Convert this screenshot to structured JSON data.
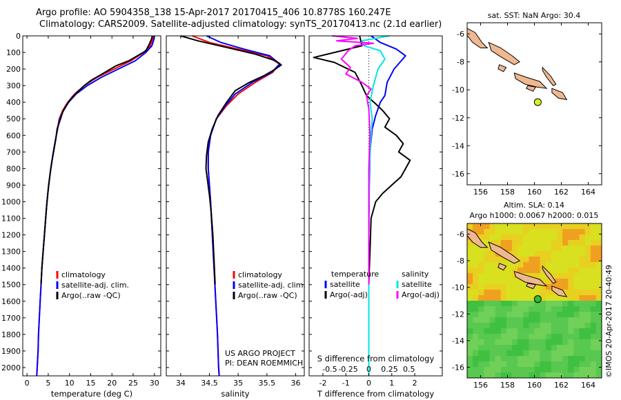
{
  "header": {
    "title_line1": "Argo profile: AO 5904358_138 15-Apr-2017 20170415_406 10.8778S 160.247E",
    "title_line2": "Climatology: CARS2009. Satellite-adjusted climatology: synTS_20170413.nc (2.1d earlier)"
  },
  "credits": {
    "project": "US ARGO PROJECT",
    "pi": "PI: DEAN ROEMMICH",
    "imos": "©IMOS 20-Apr-2017 20-40:49"
  },
  "colors": {
    "climatology": "#ff0000",
    "satellite": "#0000ff",
    "argo": "#000000",
    "satellite_salinity": "#00e5e5",
    "argo_salinity_adj": "#ff00ff",
    "land": "#f0b890",
    "float_marker": "#d8f020",
    "float_marker_lower": "#30c030"
  },
  "depth_axis": {
    "ylim": [
      0,
      2050
    ],
    "ticks": [
      0,
      100,
      200,
      300,
      400,
      500,
      600,
      700,
      800,
      900,
      1000,
      1100,
      1200,
      1300,
      1400,
      1500,
      1600,
      1700,
      1800,
      1900,
      2000
    ]
  },
  "chart_data": [
    {
      "type": "line",
      "id": "temperature",
      "xlabel": "temperature (deg C)",
      "xlim": [
        -1,
        31.5
      ],
      "xticks": [
        0,
        5,
        10,
        15,
        20,
        25,
        30
      ],
      "legend": [
        "climatology",
        "satellite-adj. clim.",
        "Argo(..raw -QC)"
      ],
      "legend_placement": "lower-middle",
      "series": [
        {
          "name": "climatology",
          "color": "#ff0000",
          "points": [
            [
              29.8,
              0
            ],
            [
              29.6,
              20
            ],
            [
              29.0,
              60
            ],
            [
              27.5,
              100
            ],
            [
              24.5,
              150
            ],
            [
              20.5,
              200
            ],
            [
              16.5,
              250
            ],
            [
              13.5,
              300
            ],
            [
              11.2,
              350
            ],
            [
              9.6,
              400
            ],
            [
              8.4,
              450
            ],
            [
              7.6,
              500
            ],
            [
              6.9,
              600
            ],
            [
              6.2,
              700
            ],
            [
              5.6,
              800
            ],
            [
              5.1,
              900
            ],
            [
              4.7,
              1000
            ],
            [
              4.4,
              1100
            ],
            [
              4.1,
              1200
            ],
            [
              3.8,
              1300
            ],
            [
              3.5,
              1400
            ],
            [
              3.3,
              1500
            ],
            [
              3.1,
              1600
            ],
            [
              2.9,
              1700
            ],
            [
              2.7,
              1800
            ],
            [
              2.6,
              1900
            ],
            [
              2.4,
              2000
            ],
            [
              2.3,
              2050
            ]
          ]
        },
        {
          "name": "satellite-adj. clim.",
          "color": "#0000ff",
          "points": [
            [
              30.0,
              0
            ],
            [
              29.9,
              20
            ],
            [
              29.4,
              60
            ],
            [
              28.0,
              100
            ],
            [
              25.5,
              150
            ],
            [
              21.5,
              200
            ],
            [
              17.5,
              250
            ],
            [
              14.2,
              300
            ],
            [
              11.6,
              350
            ],
            [
              9.8,
              400
            ],
            [
              8.6,
              450
            ],
            [
              7.7,
              500
            ],
            [
              6.9,
              600
            ],
            [
              6.2,
              700
            ],
            [
              5.6,
              800
            ],
            [
              5.1,
              900
            ],
            [
              4.7,
              1000
            ],
            [
              4.4,
              1100
            ],
            [
              4.1,
              1200
            ],
            [
              3.8,
              1300
            ],
            [
              3.5,
              1400
            ],
            [
              3.3,
              1500
            ],
            [
              3.1,
              1600
            ],
            [
              2.9,
              1700
            ],
            [
              2.7,
              1800
            ],
            [
              2.6,
              1900
            ],
            [
              2.4,
              2000
            ],
            [
              2.3,
              2050
            ]
          ]
        },
        {
          "name": "Argo(..raw -QC)",
          "color": "#000000",
          "points": [
            [
              29.5,
              0
            ],
            [
              29.3,
              20
            ],
            [
              28.8,
              50
            ],
            [
              28.0,
              90
            ],
            [
              26.0,
              120
            ],
            [
              24.0,
              150
            ],
            [
              21.0,
              180
            ],
            [
              19.0,
              210
            ],
            [
              17.0,
              240
            ],
            [
              15.0,
              270
            ],
            [
              13.5,
              300
            ],
            [
              11.8,
              340
            ],
            [
              10.3,
              380
            ],
            [
              9.2,
              420
            ],
            [
              8.4,
              460
            ],
            [
              7.9,
              500
            ],
            [
              7.1,
              560
            ],
            [
              6.8,
              620
            ],
            [
              6.4,
              680
            ],
            [
              5.9,
              750
            ],
            [
              5.5,
              820
            ],
            [
              5.2,
              880
            ],
            [
              4.9,
              950
            ],
            [
              4.6,
              1030
            ],
            [
              4.4,
              1100
            ],
            [
              4.1,
              1200
            ],
            [
              3.8,
              1300
            ],
            [
              3.5,
              1400
            ],
            [
              3.3,
              1500
            ]
          ]
        }
      ]
    },
    {
      "type": "line",
      "id": "salinity",
      "xlabel": "salinity",
      "xlim": [
        33.75,
        36.15
      ],
      "xticks": [
        34,
        34.5,
        35,
        35.5,
        36
      ],
      "legend": [
        "climatology",
        "satellite-adj. clim.",
        "Argo(..raw -QC)"
      ],
      "legend_placement": "lower-middle",
      "series": [
        {
          "name": "climatology",
          "color": "#ff0000",
          "points": [
            [
              34.2,
              0
            ],
            [
              34.5,
              40
            ],
            [
              35.0,
              80
            ],
            [
              35.5,
              120
            ],
            [
              35.72,
              170
            ],
            [
              35.6,
              220
            ],
            [
              35.3,
              280
            ],
            [
              35.0,
              350
            ],
            [
              34.8,
              420
            ],
            [
              34.62,
              500
            ],
            [
              34.52,
              600
            ],
            [
              34.48,
              700
            ],
            [
              34.48,
              800
            ],
            [
              34.5,
              900
            ],
            [
              34.52,
              1000
            ],
            [
              34.55,
              1200
            ],
            [
              34.58,
              1400
            ],
            [
              34.61,
              1600
            ],
            [
              34.64,
              1800
            ],
            [
              34.66,
              2000
            ],
            [
              34.67,
              2050
            ]
          ]
        },
        {
          "name": "satellite-adj. clim.",
          "color": "#0000ff",
          "points": [
            [
              34.45,
              0
            ],
            [
              34.7,
              40
            ],
            [
              35.1,
              80
            ],
            [
              35.55,
              120
            ],
            [
              35.72,
              170
            ],
            [
              35.58,
              220
            ],
            [
              35.25,
              280
            ],
            [
              34.95,
              350
            ],
            [
              34.78,
              420
            ],
            [
              34.62,
              500
            ],
            [
              34.52,
              600
            ],
            [
              34.48,
              700
            ],
            [
              34.48,
              800
            ],
            [
              34.5,
              900
            ],
            [
              34.52,
              1000
            ],
            [
              34.55,
              1200
            ],
            [
              34.58,
              1400
            ],
            [
              34.61,
              1600
            ],
            [
              34.64,
              1800
            ],
            [
              34.66,
              2000
            ],
            [
              34.67,
              2050
            ]
          ]
        },
        {
          "name": "Argo(..raw -QC)",
          "color": "#000000",
          "points": [
            [
              34.0,
              0
            ],
            [
              34.3,
              30
            ],
            [
              34.8,
              70
            ],
            [
              35.3,
              110
            ],
            [
              35.65,
              150
            ],
            [
              35.75,
              175
            ],
            [
              35.65,
              200
            ],
            [
              35.45,
              240
            ],
            [
              35.2,
              280
            ],
            [
              34.95,
              330
            ],
            [
              34.8,
              400
            ],
            [
              34.65,
              480
            ],
            [
              34.55,
              560
            ],
            [
              34.48,
              640
            ],
            [
              34.45,
              720
            ],
            [
              34.44,
              800
            ],
            [
              34.47,
              880
            ],
            [
              34.5,
              960
            ],
            [
              34.53,
              1060
            ],
            [
              34.56,
              1200
            ],
            [
              34.58,
              1350
            ],
            [
              34.6,
              1500
            ]
          ]
        }
      ]
    },
    {
      "type": "line",
      "id": "difference",
      "xlabel": "T difference from climatology",
      "xlabel_top": "S difference from climatology",
      "xlim": [
        -2.6,
        3.2
      ],
      "xticks_T": [
        -2,
        -1,
        0,
        1,
        2
      ],
      "xticks_S": [
        "-0.5",
        "-0.25",
        "0",
        "0.25",
        "0.5"
      ],
      "xticks_S_pos": [
        -1.7,
        -0.9,
        0,
        0.9,
        1.75
      ],
      "legend_temperature_title": "temperature",
      "legend_salinity_title": "salinity",
      "legend_temperature": [
        "satellite",
        "Argo(-adj)"
      ],
      "legend_salinity": [
        "satellite",
        "Argo(-adj)"
      ],
      "series": [
        {
          "name": "temperature satellite",
          "color": "#0000ff",
          "points": [
            [
              0.1,
              0
            ],
            [
              0.5,
              40
            ],
            [
              1.2,
              80
            ],
            [
              1.6,
              120
            ],
            [
              1.1,
              200
            ],
            [
              0.8,
              280
            ],
            [
              0.7,
              360
            ],
            [
              0.5,
              400
            ],
            [
              0.3,
              480
            ],
            [
              0.15,
              560
            ],
            [
              0.05,
              700
            ],
            [
              0.02,
              900
            ],
            [
              0.0,
              1200
            ],
            [
              0.0,
              1600
            ],
            [
              0.0,
              2050
            ]
          ]
        },
        {
          "name": "temperature Argo(-adj)",
          "color": "#000000",
          "points": [
            [
              -0.4,
              0
            ],
            [
              -0.3,
              60
            ],
            [
              -1.8,
              110
            ],
            [
              -2.4,
              130
            ],
            [
              -1.5,
              160
            ],
            [
              -0.6,
              220
            ],
            [
              -0.3,
              300
            ],
            [
              -0.1,
              360
            ],
            [
              0.3,
              410
            ],
            [
              0.6,
              450
            ],
            [
              0.9,
              500
            ],
            [
              0.7,
              550
            ],
            [
              1.2,
              600
            ],
            [
              1.5,
              650
            ],
            [
              1.3,
              700
            ],
            [
              1.8,
              750
            ],
            [
              1.6,
              800
            ],
            [
              1.4,
              850
            ],
            [
              1.0,
              900
            ],
            [
              0.6,
              950
            ],
            [
              0.3,
              1000
            ],
            [
              0.1,
              1100
            ],
            [
              0.05,
              1300
            ],
            [
              0.0,
              1500
            ]
          ]
        },
        {
          "name": "salinity satellite",
          "color": "#00e5e5",
          "points": [
            [
              0.9,
              0
            ],
            [
              -0.3,
              30
            ],
            [
              -0.2,
              60
            ],
            [
              0.5,
              90
            ],
            [
              0.7,
              140
            ],
            [
              0.4,
              200
            ],
            [
              0.2,
              300
            ],
            [
              0.05,
              400
            ],
            [
              0.15,
              500
            ],
            [
              0.1,
              600
            ],
            [
              0.02,
              800
            ],
            [
              0.0,
              1200
            ],
            [
              0.0,
              1600
            ],
            [
              0.0,
              2050
            ]
          ]
        },
        {
          "name": "salinity Argo(-adj)",
          "color": "#ff00ff",
          "points": [
            [
              -1.6,
              0
            ],
            [
              -0.5,
              15
            ],
            [
              -1.4,
              30
            ],
            [
              0.2,
              45
            ],
            [
              -0.6,
              60
            ],
            [
              -0.9,
              90
            ],
            [
              -1.2,
              140
            ],
            [
              -0.8,
              190
            ],
            [
              -1.0,
              230
            ],
            [
              -0.3,
              280
            ],
            [
              0.1,
              320
            ],
            [
              -0.1,
              360
            ],
            [
              0.0,
              440
            ],
            [
              0.05,
              600
            ],
            [
              0.0,
              800
            ],
            [
              0.0,
              1100
            ],
            [
              0.0,
              1500
            ]
          ]
        }
      ]
    },
    {
      "type": "heatmap",
      "id": "map_sst",
      "title": "sat. SST: NaN Argo: 30.4",
      "xlim": [
        155,
        165
      ],
      "ylim": [
        -16.8,
        -5.2
      ],
      "xticks": [
        156,
        158,
        160,
        162,
        164
      ],
      "yticks": [
        -6,
        -8,
        -10,
        -12,
        -14,
        -16
      ],
      "float_position": [
        160.25,
        -10.88
      ]
    },
    {
      "type": "heatmap",
      "id": "map_sla",
      "title_line1": "Altim. SLA: 0.14",
      "title_line2": "Argo h1000: 0.0067 h2000: 0.015",
      "xlim": [
        155,
        165
      ],
      "ylim": [
        -16.8,
        -5.2
      ],
      "xticks": [
        156,
        158,
        160,
        162,
        164
      ],
      "yticks": [
        -6,
        -8,
        -10,
        -12,
        -14,
        -16
      ],
      "float_position": [
        160.25,
        -10.88
      ]
    }
  ]
}
